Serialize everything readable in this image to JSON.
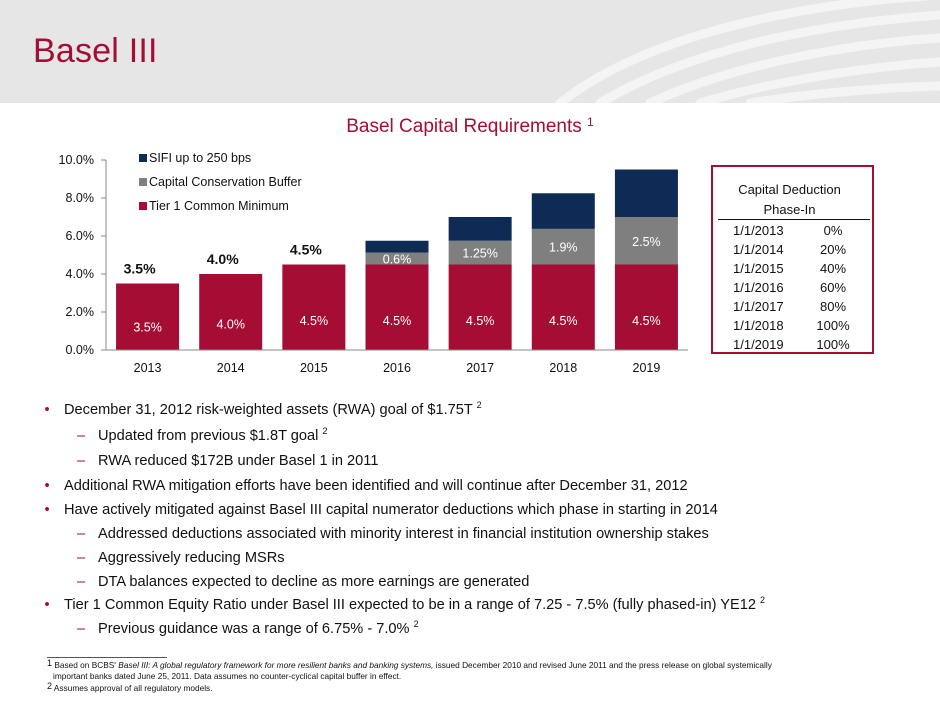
{
  "page": {
    "title": "Basel III"
  },
  "colors": {
    "brand": "#a50d35",
    "tier1": "#a50d35",
    "buffer": "#7f7f7f",
    "sifi": "#0d2b55",
    "banner": "#e6e6e6"
  },
  "chart_data": {
    "type": "bar",
    "stacked": true,
    "title": "Basel Capital Requirements",
    "title_footnote": "1",
    "categories": [
      "2013",
      "2014",
      "2015",
      "2016",
      "2017",
      "2018",
      "2019"
    ],
    "series": [
      {
        "name": "Tier 1 Common Minimum",
        "color": "#a50d35",
        "values": [
          3.5,
          4.0,
          4.5,
          4.5,
          4.5,
          4.5,
          4.5
        ],
        "labels": [
          "3.5%",
          "4.0%",
          "4.5%",
          "4.5%",
          "4.5%",
          "4.5%",
          "4.5%"
        ]
      },
      {
        "name": "Capital Conservation Buffer",
        "color": "#7f7f7f",
        "values": [
          0,
          0,
          0,
          0.625,
          1.25,
          1.875,
          2.5
        ],
        "labels": [
          "",
          "",
          "",
          "0.6%",
          "1.25%",
          "1.9%",
          "2.5%"
        ]
      },
      {
        "name": "SIFI up to 250 bps",
        "color": "#0d2b55",
        "values": [
          0,
          0,
          0,
          0.625,
          1.25,
          1.875,
          2.5
        ],
        "labels": [
          "",
          "",
          "",
          "",
          "",
          "",
          ""
        ]
      }
    ],
    "totals_labels": [
      "3.5%",
      "4.0%",
      "4.5%",
      "",
      "",
      "",
      ""
    ],
    "legend_order": [
      "SIFI up to 250 bps",
      "Capital Conservation Buffer",
      "Tier 1 Common Minimum"
    ],
    "legend_position": "top-left",
    "yticks": [
      "0.0%",
      "2.0%",
      "4.0%",
      "6.0%",
      "8.0%",
      "10.0%"
    ],
    "ylim": [
      0,
      10
    ],
    "xlabel": "",
    "ylabel": ""
  },
  "deduction_table": {
    "header_line1": "Capital Deduction",
    "header_line2": "Phase-In",
    "rows": [
      {
        "date": "1/1/2013",
        "pct": "0%"
      },
      {
        "date": "1/1/2014",
        "pct": "20%"
      },
      {
        "date": "1/1/2015",
        "pct": "40%"
      },
      {
        "date": "1/1/2016",
        "pct": "60%"
      },
      {
        "date": "1/1/2017",
        "pct": "80%"
      },
      {
        "date": "1/1/2018",
        "pct": "100%"
      },
      {
        "date": "1/1/2019",
        "pct": "100%"
      }
    ]
  },
  "bullets": [
    {
      "marker": "•",
      "text": "December 31, 2012 risk-weighted assets (RWA) goal of $1.75T",
      "sup": "2"
    },
    {
      "marker": "–",
      "text": "Updated from previous $1.8T goal",
      "sup": "2"
    },
    {
      "marker": "–",
      "text": "RWA reduced $172B under Basel 1 in 2011",
      "sup": ""
    },
    {
      "marker": "•",
      "text": "Additional RWA mitigation efforts have been identified and will continue after December 31, 2012",
      "sup": ""
    },
    {
      "marker": "•",
      "text": "Have actively mitigated against Basel III capital numerator deductions which phase in starting in 2014",
      "sup": ""
    },
    {
      "marker": "–",
      "text": "Addressed deductions associated with minority interest in financial institution ownership stakes",
      "sup": ""
    },
    {
      "marker": "–",
      "text": "Aggressively reducing MSRs",
      "sup": ""
    },
    {
      "marker": "–",
      "text": "DTA balances expected to decline as more earnings are generated",
      "sup": ""
    },
    {
      "marker": "•",
      "text": "Tier 1 Common Equity Ratio under Basel III expected to be in a range of 7.25 - 7.5% (fully phased-in) YE12",
      "sup": "2"
    },
    {
      "marker": "–",
      "text": "Previous guidance was a range of 6.75% - 7.0%",
      "sup": "2"
    }
  ],
  "footnotes": {
    "f1_num": "1",
    "f1_pre": "Based on BCBS'",
    "f1_italic": "Basel III: A global regulatory framework for more resilient banks and banking systems,",
    "f1_post": "issued December 2010 and revised June 2011 and the press release on global systemically",
    "f1_line2": "important banks dated June 25, 2011. Data assumes no counter-cyclical capital buffer in effect.",
    "f2_num": "2",
    "f2_text": "Assumes approval of all regulatory models."
  }
}
